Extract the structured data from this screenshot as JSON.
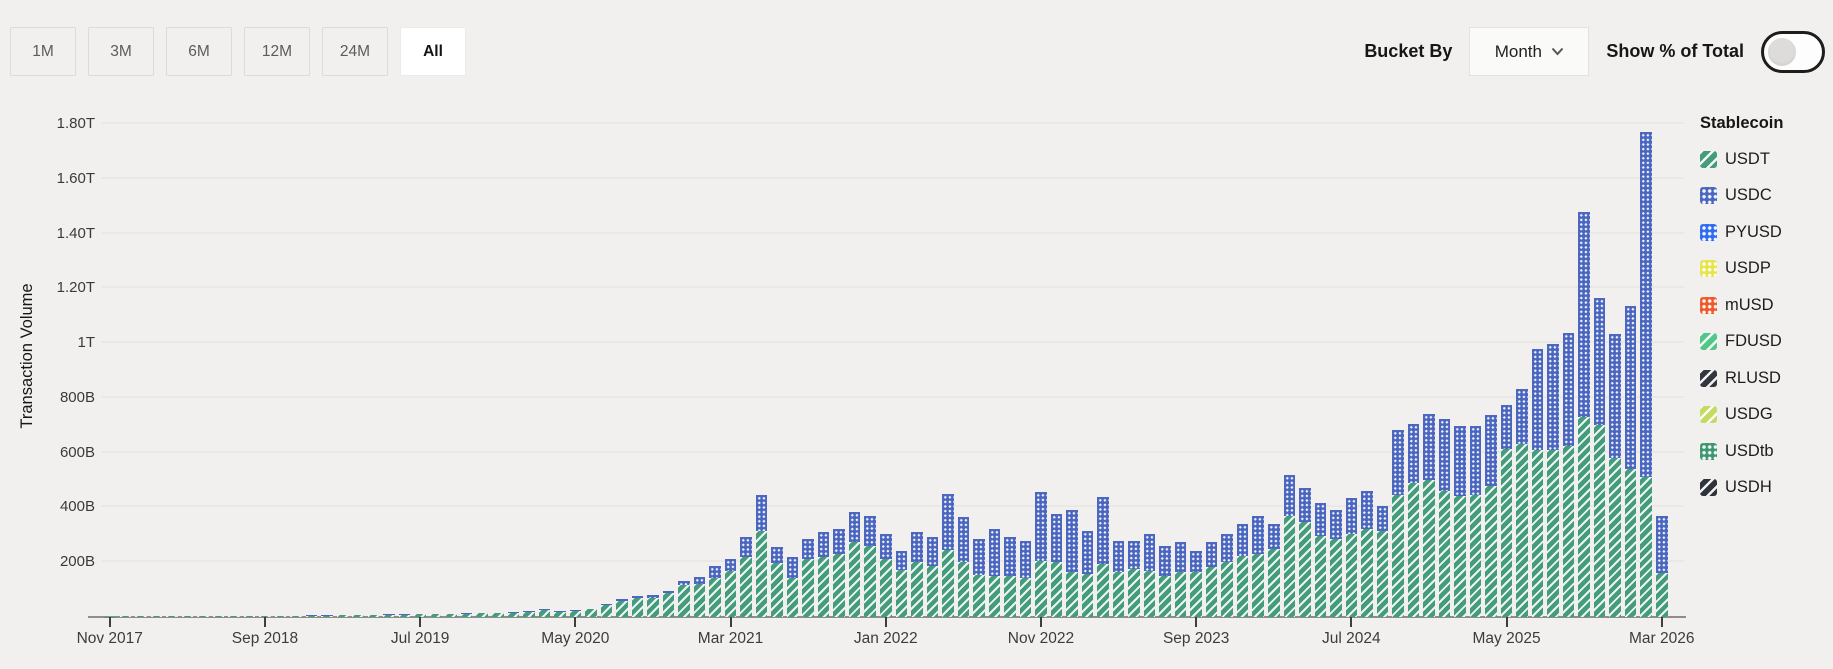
{
  "toolbar": {
    "range_buttons": [
      {
        "label": "1M",
        "active": false
      },
      {
        "label": "3M",
        "active": false
      },
      {
        "label": "6M",
        "active": false
      },
      {
        "label": "12M",
        "active": false
      },
      {
        "label": "24M",
        "active": false
      },
      {
        "label": "All",
        "active": true
      }
    ],
    "bucket_by_label": "Bucket By",
    "bucket_by_value": "Month",
    "show_pct_label": "Show % of Total",
    "show_pct_enabled": false
  },
  "legend": {
    "title": "Stablecoin",
    "items": [
      {
        "label": "USDT",
        "color": "#449c7c",
        "pattern": "diagonal-stripes"
      },
      {
        "label": "USDC",
        "color": "#4a66bf",
        "pattern": "dots"
      },
      {
        "label": "PYUSD",
        "color": "#2e6cf2",
        "pattern": "dots"
      },
      {
        "label": "USDP",
        "color": "#e7e44e",
        "pattern": "dots"
      },
      {
        "label": "mUSD",
        "color": "#ef5a2b",
        "pattern": "dots"
      },
      {
        "label": "FDUSD",
        "color": "#53c789",
        "pattern": "diagonal-stripes"
      },
      {
        "label": "RLUSD",
        "color": "#33373d",
        "pattern": "diagonal-stripes"
      },
      {
        "label": "USDG",
        "color": "#c3da63",
        "pattern": "diagonal-stripes"
      },
      {
        "label": "USDtb",
        "color": "#3f9770",
        "pattern": "dots"
      },
      {
        "label": "USDH",
        "color": "#30343a",
        "pattern": "diagonal-stripes"
      }
    ]
  },
  "chart_data": {
    "type": "bar",
    "stacked": true,
    "title": "",
    "xlabel": "",
    "ylabel": "Transaction Volume",
    "values_unit": "billions USD",
    "bucket": "month",
    "x_start": "2017-11",
    "x_end": "2026-03",
    "num_buckets": 101,
    "ylim": [
      0,
      1900
    ],
    "grid": true,
    "legend_position": "right",
    "x_tick_indices": [
      0,
      10,
      20,
      30,
      40,
      50,
      60,
      70,
      80,
      90,
      100
    ],
    "x_tick_labels": [
      "Nov 2017",
      "Sep 2018",
      "Jul 2019",
      "May 2020",
      "Mar 2021",
      "Jan 2022",
      "Nov 2022",
      "Sep 2023",
      "Jul 2024",
      "May 2025",
      "Mar 2026"
    ],
    "y_ticks": [
      {
        "value": 200,
        "label": "200B"
      },
      {
        "value": 400,
        "label": "400B"
      },
      {
        "value": 600,
        "label": "600B"
      },
      {
        "value": 800,
        "label": "800B"
      },
      {
        "value": 1000,
        "label": "1T"
      },
      {
        "value": 1200,
        "label": "1.20T"
      },
      {
        "value": 1400,
        "label": "1.40T"
      },
      {
        "value": 1600,
        "label": "1.60T"
      },
      {
        "value": 1800,
        "label": "1.80T"
      }
    ],
    "series": [
      {
        "name": "USDT",
        "color": "#449c7c",
        "pattern": "diagonal-stripes",
        "values": [
          1,
          2,
          2,
          2,
          2,
          2,
          3,
          3,
          3,
          3,
          3,
          4,
          4,
          5,
          5,
          6,
          7,
          8,
          9,
          9,
          10,
          11,
          11,
          12,
          13,
          14,
          16,
          19,
          25,
          20,
          23,
          28,
          43,
          60,
          68,
          71,
          86,
          118,
          120,
          144,
          167,
          218,
          315,
          198,
          144,
          211,
          218,
          229,
          274,
          259,
          211,
          172,
          200,
          185,
          245,
          200,
          155,
          148,
          148,
          144,
          205,
          200,
          163,
          156,
          193,
          163,
          174,
          167,
          148,
          163,
          163,
          181,
          200,
          222,
          230,
          248,
          367,
          348,
          296,
          285,
          304,
          322,
          315,
          444,
          489,
          500,
          459,
          440,
          444,
          477,
          615,
          630,
          611,
          611,
          625,
          729,
          700,
          580,
          540,
          510,
          160
        ]
      },
      {
        "name": "USDC",
        "color": "#4a66bf",
        "pattern": "dots",
        "values": [
          0,
          0,
          0,
          0,
          0,
          0,
          0,
          0,
          0,
          0,
          0,
          0,
          1,
          1,
          1,
          1,
          1,
          1,
          1,
          1,
          1,
          1,
          1,
          1,
          2,
          2,
          2,
          2,
          3,
          3,
          3,
          3,
          4,
          5,
          7,
          8,
          10,
          15,
          25,
          41,
          45,
          74,
          129,
          57,
          74,
          74,
          93,
          93,
          111,
          111,
          92,
          68,
          112,
          107,
          205,
          165,
          130,
          172,
          145,
          134,
          250,
          177,
          227,
          159,
          247,
          115,
          104,
          137,
          111,
          111,
          78,
          93,
          104,
          119,
          137,
          93,
          152,
          122,
          119,
          104,
          129,
          137,
          89,
          237,
          214,
          240,
          263,
          259,
          255,
          259,
          160,
          203,
          366,
          384,
          411,
          748,
          464,
          455,
          594,
          1261,
          210
        ]
      }
    ],
    "other_series_note": "PYUSD, USDP, mUSD, FDUSD, RLUSD, USDG, USDtb and USDH appear in the legend but their volumes are too small to be visible at this scale"
  }
}
